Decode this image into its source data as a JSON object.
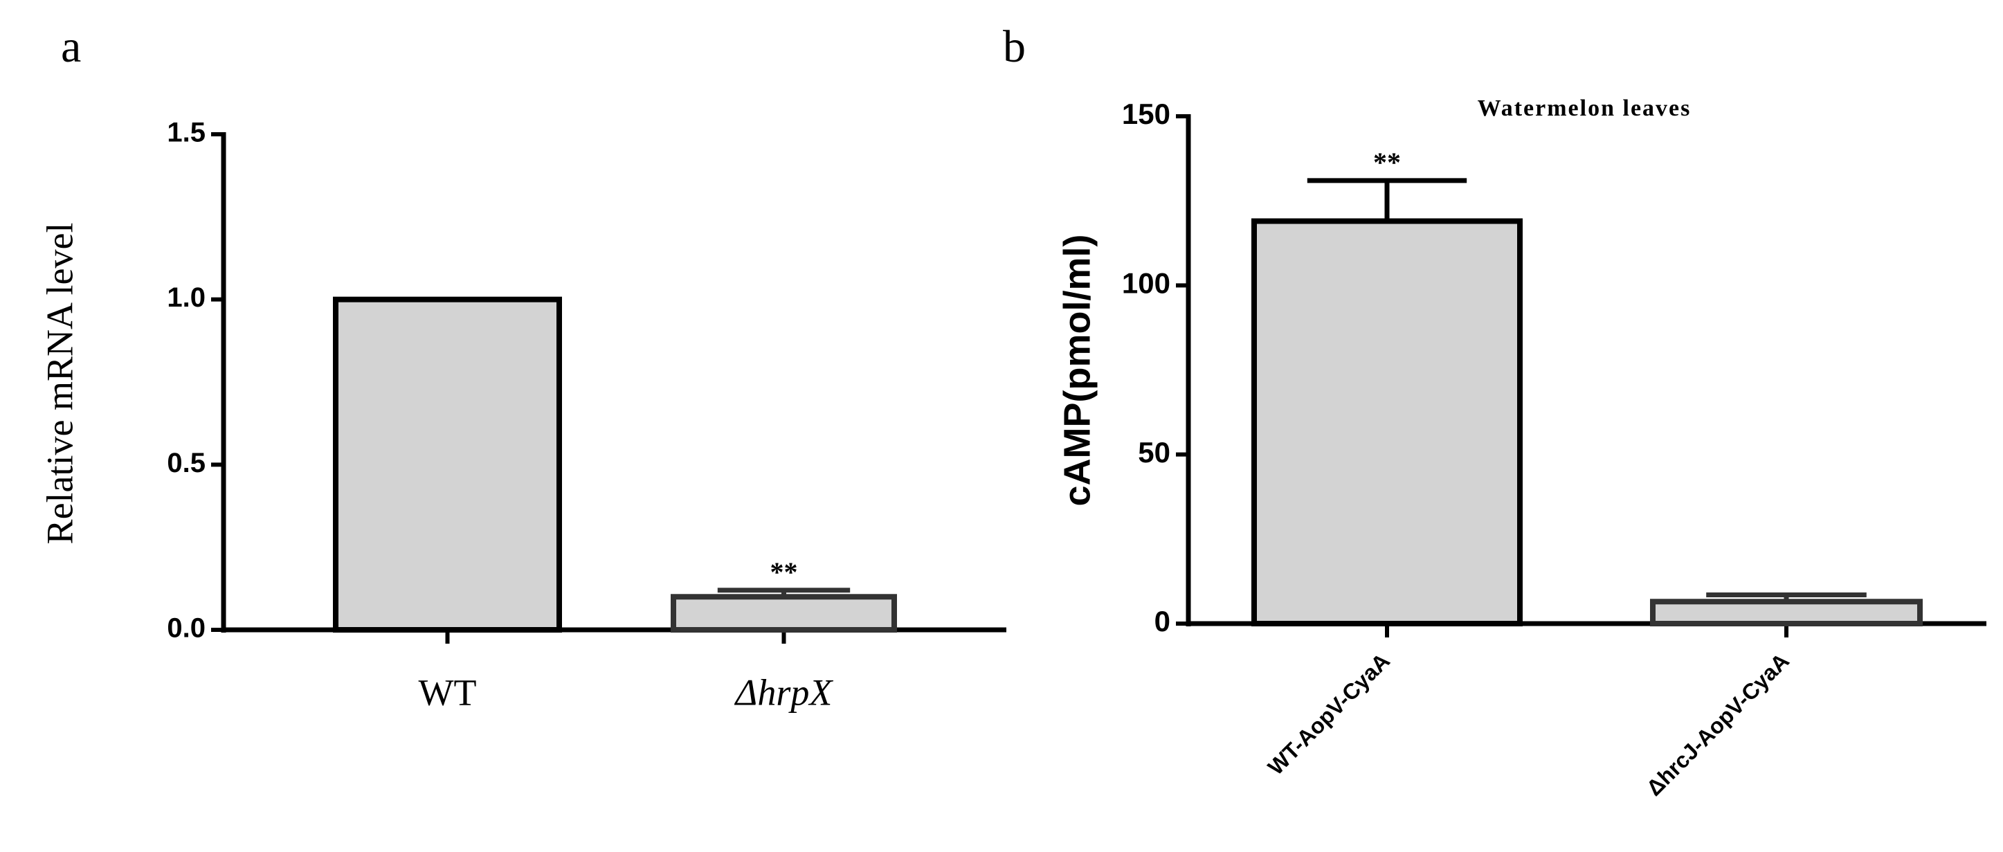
{
  "chart_data": [
    {
      "type": "bar",
      "label": "a",
      "y_label": "Relative mRNA level",
      "categories": [
        "WT",
        "ΔhrpX"
      ],
      "values": [
        1.0,
        0.1
      ],
      "errors": [
        null,
        0.02
      ],
      "annotations": [
        null,
        "**"
      ],
      "color": "#d3d3d3",
      "edge_colors": [
        "#000000",
        "#333333"
      ],
      "ylim": [
        0,
        1.5
      ],
      "yticks": [
        {
          "value": 0,
          "label": "0.0"
        },
        {
          "value": 0.5,
          "label": "0.5"
        },
        {
          "value": 1,
          "label": "1.0"
        },
        {
          "value": 1.5,
          "label": "1.5"
        }
      ]
    },
    {
      "type": "bar",
      "label": "b",
      "title": "Watermelon leaves",
      "y_label": "cAMP(pmol/ml)",
      "categories": [
        "WT-AopV-CyaA",
        "ΔhrcJ-AopV-CyaA"
      ],
      "values": [
        119,
        6.5
      ],
      "errors": [
        12,
        2
      ],
      "annotations": [
        "**",
        null
      ],
      "color": "#d3d3d3",
      "edge_colors": [
        "#000000",
        "#333333"
      ],
      "ylim": [
        0,
        150
      ],
      "yticks": [
        0,
        50,
        100,
        150
      ]
    }
  ]
}
